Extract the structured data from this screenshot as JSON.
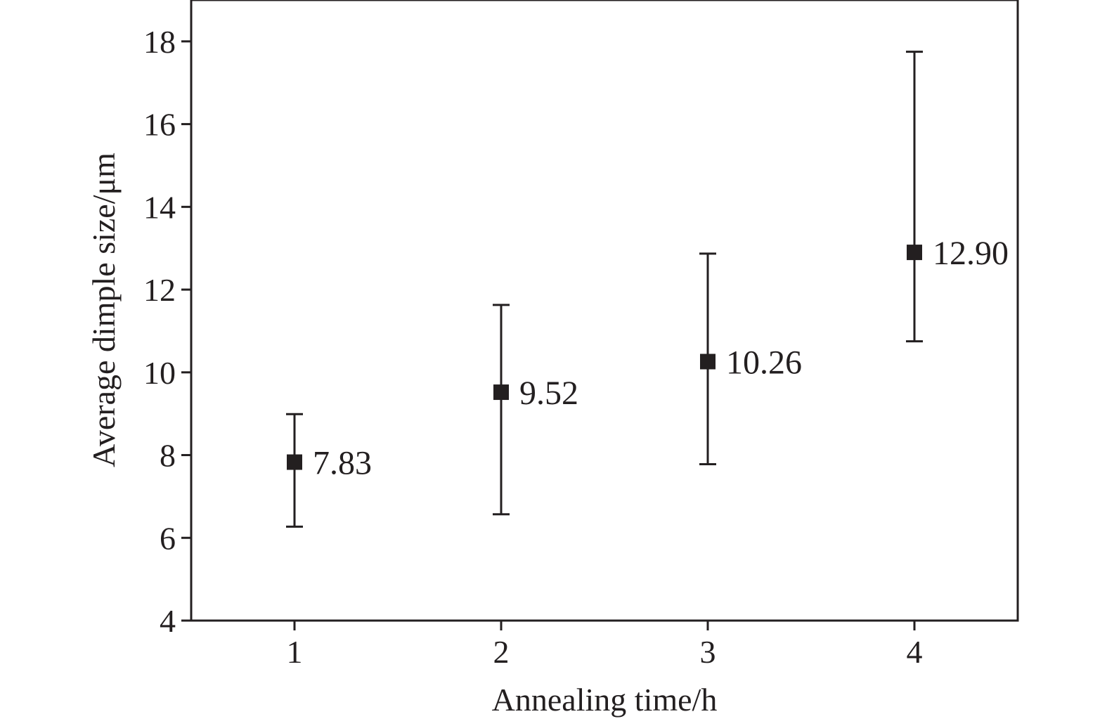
{
  "chart_data": {
    "type": "scatter",
    "xlabel": "Annealing time/h",
    "ylabel": "Average dimple size/μm",
    "xlim": [
      0.5,
      4.5
    ],
    "ylim": [
      4,
      19
    ],
    "x_ticks": [
      1,
      2,
      3,
      4
    ],
    "y_ticks": [
      4,
      6,
      8,
      10,
      12,
      14,
      16,
      18
    ],
    "grid": false,
    "series": [
      {
        "marker": "square",
        "color": "#231f20",
        "points": [
          {
            "x": 1,
            "y": 7.83,
            "label": "7.83",
            "err_low": 6.27,
            "err_high": 8.99
          },
          {
            "x": 2,
            "y": 9.52,
            "label": "9.52",
            "err_low": 6.57,
            "err_high": 11.63
          },
          {
            "x": 3,
            "y": 10.26,
            "label": "10.26",
            "err_low": 7.78,
            "err_high": 12.87
          },
          {
            "x": 4,
            "y": 12.9,
            "label": "12.90",
            "err_low": 10.75,
            "err_high": 17.75
          }
        ]
      }
    ]
  }
}
